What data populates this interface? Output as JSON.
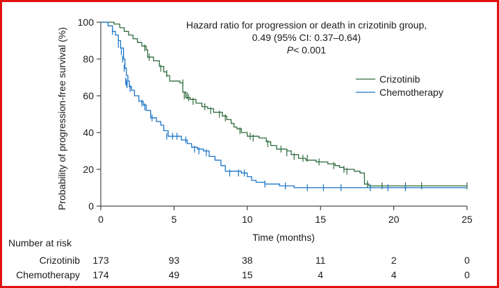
{
  "chart_data": {
    "type": "line",
    "subtype": "kaplan-meier",
    "ylabel": "Probability of progression-free survival (%)",
    "xlabel": "Time (months)",
    "xlim": [
      0,
      25
    ],
    "ylim": [
      0,
      100
    ],
    "x_ticks": [
      "0",
      "5",
      "10",
      "15",
      "20",
      "25"
    ],
    "y_ticks": [
      "0",
      "20",
      "40",
      "60",
      "80",
      "100"
    ],
    "grid": false,
    "legend_position": "right, below annotation",
    "annotation": {
      "line1": "Hazard ratio for progression or death in crizotinib group,",
      "line2": "0.49 (95% CI: 0.37–0.64)",
      "line3_p": "P",
      "line3_rest": "< 0.001"
    },
    "series": [
      {
        "name": "Crizotinib",
        "color": "#2e6b3e",
        "steps": [
          [
            0,
            100
          ],
          [
            0.9,
            99
          ],
          [
            1.3,
            97
          ],
          [
            1.6,
            95
          ],
          [
            1.9,
            93
          ],
          [
            2.2,
            91
          ],
          [
            2.5,
            89
          ],
          [
            2.8,
            87
          ],
          [
            3.1,
            85
          ],
          [
            3.2,
            81
          ],
          [
            3.6,
            79
          ],
          [
            4.0,
            76
          ],
          [
            4.3,
            73
          ],
          [
            4.5,
            71
          ],
          [
            4.7,
            68
          ],
          [
            5.4,
            67
          ],
          [
            5.6,
            62
          ],
          [
            5.8,
            59
          ],
          [
            6.1,
            58
          ],
          [
            6.5,
            56
          ],
          [
            6.9,
            54
          ],
          [
            7.3,
            53
          ],
          [
            7.7,
            51
          ],
          [
            8.3,
            49
          ],
          [
            8.6,
            47
          ],
          [
            8.9,
            45
          ],
          [
            9.1,
            43
          ],
          [
            9.3,
            42
          ],
          [
            9.6,
            40
          ],
          [
            10.0,
            38
          ],
          [
            10.8,
            37
          ],
          [
            11.3,
            35
          ],
          [
            11.6,
            33
          ],
          [
            12.0,
            31
          ],
          [
            12.7,
            30
          ],
          [
            13.0,
            28
          ],
          [
            13.5,
            26
          ],
          [
            14.0,
            25
          ],
          [
            14.7,
            24
          ],
          [
            15.5,
            23
          ],
          [
            16.0,
            22
          ],
          [
            16.3,
            21
          ],
          [
            16.6,
            20
          ],
          [
            17.3,
            19
          ],
          [
            17.7,
            18
          ],
          [
            18.0,
            12
          ],
          [
            18.3,
            11
          ],
          [
            25,
            11
          ]
        ],
        "censors": [
          [
            3.0,
            86
          ],
          [
            3.3,
            81
          ],
          [
            4.1,
            75
          ],
          [
            4.5,
            72
          ],
          [
            5.6,
            67
          ],
          [
            5.7,
            60
          ],
          [
            5.9,
            60
          ],
          [
            6.0,
            59
          ],
          [
            6.3,
            57
          ],
          [
            7.1,
            54
          ],
          [
            7.5,
            52
          ],
          [
            8.1,
            50
          ],
          [
            8.5,
            48
          ],
          [
            9.5,
            41
          ],
          [
            10.2,
            38
          ],
          [
            10.4,
            37
          ],
          [
            11.4,
            34
          ],
          [
            12.3,
            31
          ],
          [
            12.7,
            29
          ],
          [
            13.2,
            27
          ],
          [
            13.8,
            26
          ],
          [
            14.1,
            26
          ],
          [
            14.9,
            24
          ],
          [
            15.9,
            22
          ],
          [
            16.6,
            20
          ],
          [
            16.8,
            19
          ],
          [
            18.2,
            12
          ],
          [
            19.2,
            11
          ],
          [
            20.8,
            11
          ],
          [
            21.9,
            11
          ],
          [
            25.0,
            11
          ]
        ]
      },
      {
        "name": "Chemotherapy",
        "color": "#1a74c8",
        "steps": [
          [
            0,
            100
          ],
          [
            0.5,
            98
          ],
          [
            0.8,
            95
          ],
          [
            1.0,
            93
          ],
          [
            1.2,
            90
          ],
          [
            1.35,
            86
          ],
          [
            1.55,
            80
          ],
          [
            1.65,
            75
          ],
          [
            1.75,
            71
          ],
          [
            1.85,
            68
          ],
          [
            1.95,
            65
          ],
          [
            2.1,
            63
          ],
          [
            2.3,
            60
          ],
          [
            2.6,
            57
          ],
          [
            2.9,
            55
          ],
          [
            3.1,
            52
          ],
          [
            3.4,
            48
          ],
          [
            3.8,
            46
          ],
          [
            4.1,
            44
          ],
          [
            4.3,
            41
          ],
          [
            4.6,
            38
          ],
          [
            5.5,
            36
          ],
          [
            5.9,
            34
          ],
          [
            6.2,
            32
          ],
          [
            6.6,
            31
          ],
          [
            7.0,
            30
          ],
          [
            7.4,
            27
          ],
          [
            7.8,
            25
          ],
          [
            8.2,
            22
          ],
          [
            8.5,
            19
          ],
          [
            9.6,
            18
          ],
          [
            10.0,
            16
          ],
          [
            10.3,
            14
          ],
          [
            10.6,
            13
          ],
          [
            11.2,
            12
          ],
          [
            12.2,
            11
          ],
          [
            13.2,
            10
          ],
          [
            25,
            10
          ]
        ],
        "censors": [
          [
            0.8,
            95
          ],
          [
            1.2,
            88
          ],
          [
            1.4,
            84
          ],
          [
            1.5,
            80
          ],
          [
            1.6,
            75
          ],
          [
            1.7,
            68
          ],
          [
            1.75,
            67
          ],
          [
            1.8,
            66
          ],
          [
            2.0,
            64
          ],
          [
            2.8,
            56
          ],
          [
            3.0,
            54
          ],
          [
            3.5,
            48
          ],
          [
            4.5,
            38
          ],
          [
            4.9,
            38
          ],
          [
            5.2,
            38
          ],
          [
            5.8,
            36
          ],
          [
            6.4,
            31
          ],
          [
            6.7,
            30
          ],
          [
            7.2,
            29
          ],
          [
            8.8,
            18
          ],
          [
            9.4,
            18
          ],
          [
            9.8,
            18
          ],
          [
            11.2,
            12
          ],
          [
            12.6,
            11
          ],
          [
            14.1,
            10
          ],
          [
            15.2,
            10
          ],
          [
            16.4,
            10
          ],
          [
            18.4,
            10
          ],
          [
            19.6,
            10
          ],
          [
            20.8,
            10
          ]
        ]
      }
    ]
  },
  "risk_table": {
    "header": "Number at risk",
    "rows": [
      {
        "label": "Crizotinib",
        "values": [
          "173",
          "93",
          "38",
          "11",
          "2",
          "0"
        ]
      },
      {
        "label": "Chemotherapy",
        "values": [
          "174",
          "49",
          "15",
          "4",
          "4",
          "0"
        ]
      }
    ]
  },
  "frame_color": "#e01010"
}
